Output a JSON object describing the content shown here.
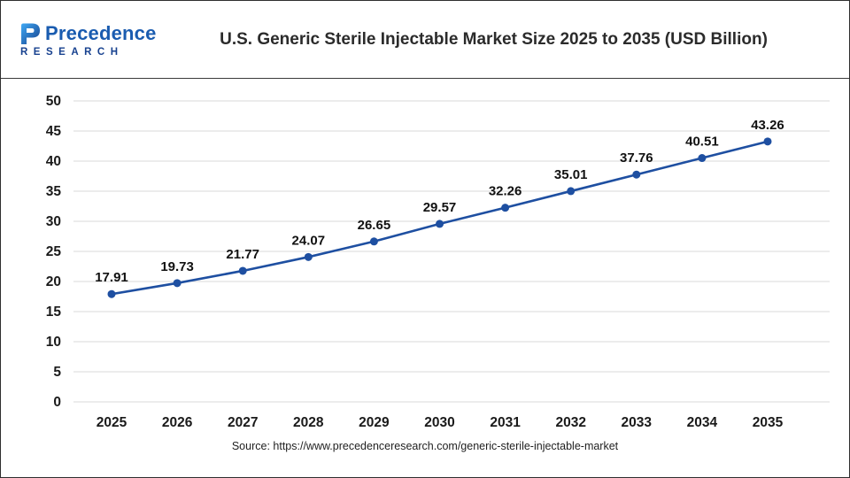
{
  "header": {
    "logo": {
      "text": "Precedence",
      "subtext": "RESEARCH"
    },
    "title": "U.S. Generic Sterile Injectable Market Size 2025 to 2035 (USD Billion)"
  },
  "chart_data": {
    "type": "line",
    "title": "U.S. Generic Sterile Injectable Market Size 2025 to 2035 (USD Billion)",
    "categories": [
      "2025",
      "2026",
      "2027",
      "2028",
      "2029",
      "2030",
      "2031",
      "2032",
      "2033",
      "2034",
      "2035"
    ],
    "series": [
      {
        "name": "U.S. Generic Sterile Injectable Market Size (USD Billion)",
        "values": [
          17.91,
          19.73,
          21.77,
          24.07,
          26.65,
          29.57,
          32.26,
          35.01,
          37.76,
          40.51,
          43.26
        ]
      }
    ],
    "ylim": [
      0,
      50
    ],
    "ytick_step": 5,
    "grid": true,
    "legend": false,
    "line_color": "#1e4fa1",
    "marker_color": "#1e4fa1",
    "grid_color": "#d9d9d9",
    "label_color": "#111111",
    "tick_color": "#1a1a1a",
    "xlabel": "",
    "ylabel": ""
  },
  "footer": {
    "source": "Source: https://www.precedenceresearch.com/generic-sterile-injectable-market"
  }
}
